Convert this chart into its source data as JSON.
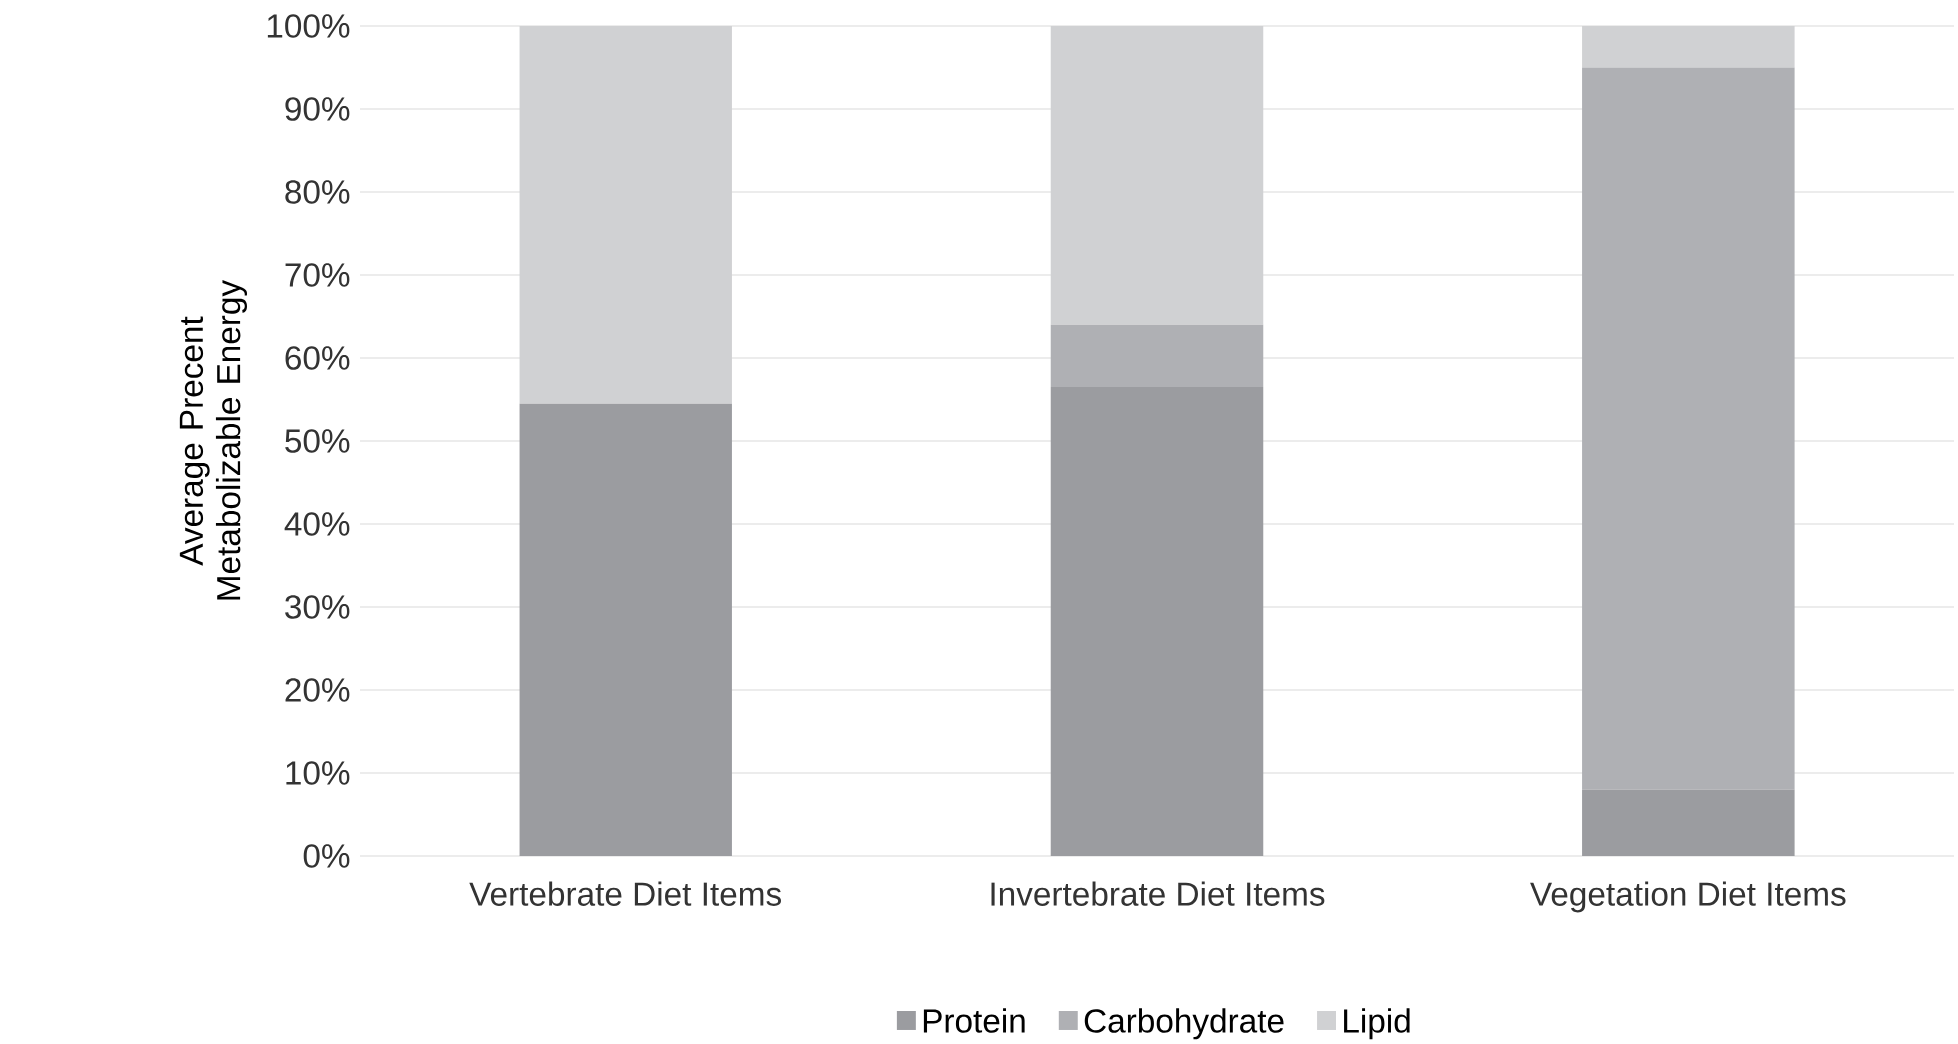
{
  "chart_data": {
    "type": "bar",
    "stacked": true,
    "ylabel": "Average Precent Metabolizable Energy",
    "categories": [
      "Vertebrate Diet Items",
      "Invertebrate Diet Items",
      "Vegetation Diet Items"
    ],
    "series": [
      {
        "name": "Protein",
        "color": "#9b9ca0",
        "values": [
          54.5,
          56.5,
          8
        ]
      },
      {
        "name": "Carbohydrate",
        "color": "#afb0b4",
        "values": [
          0,
          7.5,
          87
        ]
      },
      {
        "name": "Lipid",
        "color": "#d0d1d3",
        "values": [
          45.5,
          36,
          5
        ]
      }
    ],
    "ylim": [
      0,
      100
    ],
    "yticks": [
      {
        "value": 0,
        "label": "0%"
      },
      {
        "value": 10,
        "label": "10%"
      },
      {
        "value": 20,
        "label": "20%"
      },
      {
        "value": 30,
        "label": "30%"
      },
      {
        "value": 40,
        "label": "40%"
      },
      {
        "value": 50,
        "label": "50%"
      },
      {
        "value": 60,
        "label": "60%"
      },
      {
        "value": 70,
        "label": "70%"
      },
      {
        "value": 80,
        "label": "80%"
      },
      {
        "value": 90,
        "label": "90%"
      },
      {
        "value": 100,
        "label": "100%"
      }
    ],
    "grid": "y",
    "legend": "bottom"
  }
}
